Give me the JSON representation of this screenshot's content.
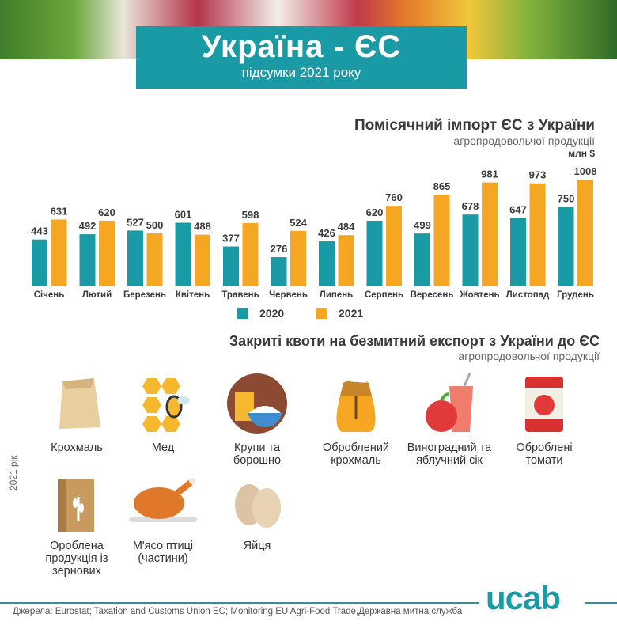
{
  "header": {
    "title": "Україна - ЄС",
    "subtitle": "підсумки 2021 року"
  },
  "colors": {
    "y2020": "#1a9aa5",
    "y2021": "#f5a623"
  },
  "chart_data": {
    "type": "bar",
    "title": "Помісячний імпорт ЄС з України",
    "subtitle": "агропродовольчої продукції",
    "unit": "млн $",
    "categories": [
      "Січень",
      "Лютий",
      "Березень",
      "Квітень",
      "Травень",
      "Червень",
      "Липень",
      "Серпень",
      "Вересень",
      "Жовтень",
      "Листопад",
      "Грудень"
    ],
    "series": [
      {
        "name": "2020",
        "values": [
          443,
          492,
          527,
          601,
          377,
          276,
          426,
          620,
          499,
          678,
          647,
          750
        ]
      },
      {
        "name": "2021",
        "values": [
          631,
          620,
          500,
          488,
          598,
          524,
          484,
          760,
          865,
          981,
          973,
          1008
        ]
      }
    ],
    "ylim": [
      0,
      1008
    ],
    "legend": "bottom",
    "grid": false
  },
  "quotas": {
    "title": "Закриті квоти на безмитний експорт з України до ЄС",
    "subtitle": "агропродовольчої продукції",
    "year_label": "2021 рік",
    "items": [
      {
        "label": "Крохмаль",
        "icon": "sack-icon"
      },
      {
        "label": "Мед",
        "icon": "honeycomb-bee-icon"
      },
      {
        "label": "Крупи та борошно",
        "icon": "flour-bowl-icon"
      },
      {
        "label": "Оброблений крохмаль",
        "icon": "flour-bag-icon"
      },
      {
        "label": "Виноградний та яблучний сік",
        "icon": "juice-apple-icon"
      },
      {
        "label": "Оброблені томати",
        "icon": "tomato-can-icon"
      },
      {
        "label": "Оробленa продукція із зернових",
        "icon": "grain-bag-icon"
      },
      {
        "label": "М'ясо птиці (частини)",
        "icon": "roast-chicken-icon"
      },
      {
        "label": "Яйця",
        "icon": "eggs-icon"
      }
    ]
  },
  "footer": {
    "logo": "ucab",
    "source": "Джерела: Eurostat; Taxation and Customs Union EC; Monitoring EU Agri-Food Trade,Державна митна служба"
  }
}
